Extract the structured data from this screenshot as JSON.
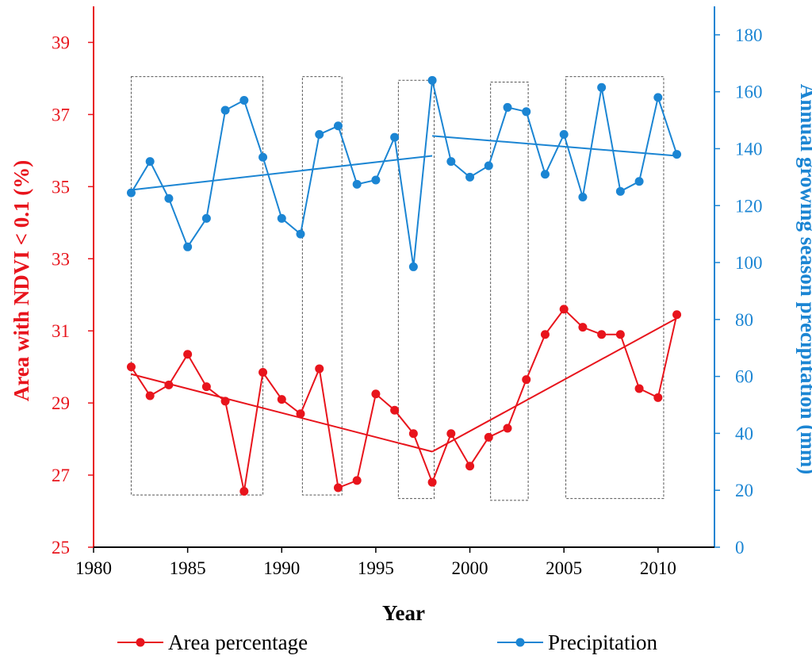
{
  "chart_data": {
    "type": "line",
    "xlabel": "Year",
    "ylabel_left": "Area with NDVI < 0.1 (%)",
    "ylabel_right": "Annual growing season precipitation (mm)",
    "xlim": [
      1980,
      2013
    ],
    "ylim_left": [
      25,
      40
    ],
    "ylim_right": [
      0,
      190
    ],
    "x_ticks": [
      1980,
      1985,
      1990,
      1995,
      2000,
      2005,
      2010
    ],
    "y_left_ticks": [
      25,
      27,
      29,
      31,
      33,
      35,
      37,
      39
    ],
    "y_right_ticks": [
      0,
      20,
      40,
      60,
      80,
      100,
      120,
      140,
      160,
      180
    ],
    "grid": false,
    "legend_position": "bottom",
    "colors": {
      "area": "#e8141c",
      "precip": "#1b85d3",
      "box": "#555555"
    },
    "series": [
      {
        "name": "Area percentage",
        "axis": "left",
        "x": [
          1982,
          1983,
          1984,
          1985,
          1986,
          1987,
          1988,
          1989,
          1990,
          1991,
          1992,
          1993,
          1994,
          1995,
          1996,
          1997,
          1998,
          1999,
          2000,
          2001,
          2002,
          2003,
          2004,
          2005,
          2006,
          2007,
          2008,
          2009,
          2010,
          2011
        ],
        "y": [
          30.0,
          29.2,
          29.5,
          30.35,
          29.45,
          29.05,
          26.55,
          29.85,
          29.1,
          28.7,
          29.95,
          26.65,
          26.85,
          29.25,
          28.8,
          28.15,
          26.8,
          28.15,
          27.25,
          28.05,
          28.3,
          29.65,
          30.9,
          31.6,
          31.1,
          30.9,
          30.9,
          29.4,
          29.15,
          31.45
        ]
      },
      {
        "name": "Precipitation",
        "axis": "right",
        "x": [
          1982,
          1983,
          1984,
          1985,
          1986,
          1987,
          1988,
          1989,
          1990,
          1991,
          1992,
          1993,
          1994,
          1995,
          1996,
          1997,
          1998,
          1999,
          2000,
          2001,
          2002,
          2003,
          2004,
          2005,
          2006,
          2007,
          2008,
          2009,
          2010,
          2011
        ],
        "y": [
          124.5,
          135.5,
          122.5,
          105.5,
          115.5,
          153.5,
          157,
          137,
          115.5,
          110,
          145,
          148,
          127.5,
          129,
          144,
          98.5,
          164,
          135.5,
          130,
          134,
          154.5,
          153,
          131,
          145,
          123,
          161.5,
          125,
          128.5,
          158,
          138
        ]
      }
    ],
    "trend_lines": [
      {
        "series": "Area percentage",
        "x": [
          1982,
          1998
        ],
        "y": [
          29.8,
          27.65
        ]
      },
      {
        "series": "Area percentage",
        "x": [
          1998,
          2011
        ],
        "y": [
          27.65,
          31.35
        ]
      },
      {
        "series": "Precipitation",
        "x": [
          1982,
          1998
        ],
        "y": [
          125.5,
          137.5
        ]
      },
      {
        "series": "Precipitation",
        "x": [
          1998,
          2011
        ],
        "y": [
          144.5,
          137.5
        ]
      }
    ],
    "highlight_periods": [
      {
        "x": [
          1982,
          1989
        ],
        "y_left": [
          26.45,
          38.05
        ]
      },
      {
        "x": [
          1991.1,
          1993.2
        ],
        "y_left": [
          26.45,
          38.05
        ]
      },
      {
        "x": [
          1996.2,
          1998.1
        ],
        "y_left": [
          26.35,
          37.95
        ]
      },
      {
        "x": [
          2001.1,
          2003.1
        ],
        "y_left": [
          26.3,
          37.9
        ]
      },
      {
        "x": [
          2005.1,
          2010.3
        ],
        "y_left": [
          26.35,
          38.05
        ]
      }
    ]
  }
}
